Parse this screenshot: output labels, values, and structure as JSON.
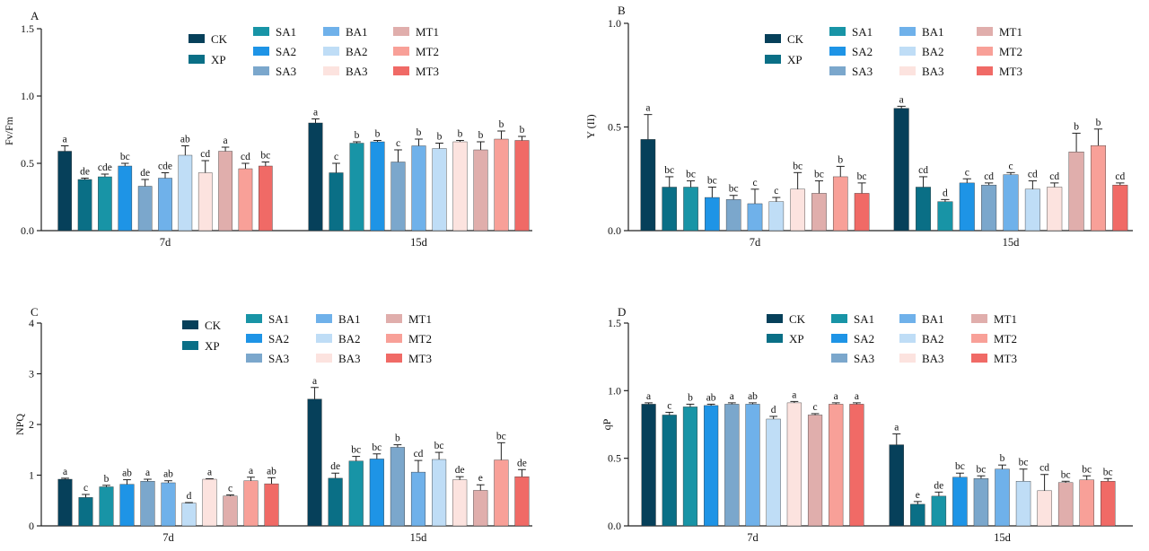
{
  "legend_labels": [
    "CK",
    "XP",
    "SA1",
    "SA2",
    "SA3",
    "BA1",
    "BA2",
    "BA3",
    "MT1",
    "MT2",
    "MT3"
  ],
  "colors": [
    "#06405A",
    "#0A6F86",
    "#1894A6",
    "#1E94E6",
    "#7BA7CC",
    "#6FB1EA",
    "#BFDDF6",
    "#FCE3DF",
    "#E0AEAC",
    "#F8A098",
    "#F06A66"
  ],
  "chart_data": [
    {
      "type": "bar",
      "panel": "A",
      "ylabel": "Fv/Fm",
      "ylim": [
        0,
        1.5
      ],
      "yticks": [
        "0.0",
        "0.5",
        "1.0",
        "1.5"
      ],
      "categories": [
        "7d",
        "15d"
      ],
      "series_names": [
        "CK",
        "XP",
        "SA1",
        "SA2",
        "SA3",
        "BA1",
        "BA2",
        "BA3",
        "MT1",
        "MT2",
        "MT3"
      ],
      "values": [
        [
          0.59,
          0.38,
          0.4,
          0.48,
          0.33,
          0.39,
          0.56,
          0.43,
          0.59,
          0.46,
          0.48
        ],
        [
          0.8,
          0.43,
          0.65,
          0.66,
          0.51,
          0.63,
          0.61,
          0.66,
          0.6,
          0.68,
          0.67
        ]
      ],
      "errors": [
        [
          0.04,
          0.01,
          0.02,
          0.02,
          0.05,
          0.04,
          0.07,
          0.09,
          0.03,
          0.04,
          0.03
        ],
        [
          0.03,
          0.07,
          0.01,
          0.01,
          0.09,
          0.05,
          0.04,
          0.01,
          0.06,
          0.06,
          0.03
        ]
      ],
      "letters": [
        [
          "a",
          "de",
          "cde",
          "bc",
          "de",
          "cde",
          "ab",
          "cd",
          "a",
          "cd",
          "bc"
        ],
        [
          "a",
          "c",
          "b",
          "b",
          "c",
          "b",
          "b",
          "b",
          "b",
          "b",
          "b"
        ]
      ]
    },
    {
      "type": "bar",
      "panel": "B",
      "ylabel": "Y (II)",
      "ylim": [
        0,
        1.0
      ],
      "yticks": [
        "0.0",
        "0.5",
        "1.0"
      ],
      "categories": [
        "7d",
        "15d"
      ],
      "series_names": [
        "CK",
        "XP",
        "SA1",
        "SA2",
        "SA3",
        "BA1",
        "BA2",
        "BA3",
        "MT1",
        "MT2",
        "MT3"
      ],
      "values": [
        [
          0.44,
          0.21,
          0.21,
          0.16,
          0.15,
          0.13,
          0.14,
          0.2,
          0.18,
          0.26,
          0.18
        ],
        [
          0.59,
          0.21,
          0.14,
          0.23,
          0.22,
          0.27,
          0.2,
          0.21,
          0.38,
          0.41,
          0.22
        ]
      ],
      "errors": [
        [
          0.12,
          0.05,
          0.03,
          0.05,
          0.02,
          0.07,
          0.02,
          0.08,
          0.06,
          0.05,
          0.05
        ],
        [
          0.01,
          0.05,
          0.01,
          0.02,
          0.01,
          0.01,
          0.04,
          0.02,
          0.09,
          0.08,
          0.01
        ]
      ],
      "letters": [
        [
          "a",
          "bc",
          "bc",
          "bc",
          "bc",
          "c",
          "c",
          "bc",
          "bc",
          "b",
          "bc"
        ],
        [
          "a",
          "cd",
          "d",
          "c",
          "cd",
          "c",
          "cd",
          "cd",
          "b",
          "b",
          "cd"
        ]
      ]
    },
    {
      "type": "bar",
      "panel": "C",
      "ylabel": "NPQ",
      "ylim": [
        0,
        4
      ],
      "yticks": [
        "0",
        "1",
        "2",
        "3",
        "4"
      ],
      "categories": [
        "7d",
        "15d"
      ],
      "series_names": [
        "CK",
        "XP",
        "SA1",
        "SA2",
        "SA3",
        "BA1",
        "BA2",
        "BA3",
        "MT1",
        "MT2",
        "MT3"
      ],
      "values": [
        [
          0.92,
          0.56,
          0.77,
          0.82,
          0.88,
          0.85,
          0.45,
          0.92,
          0.59,
          0.89,
          0.83
        ],
        [
          2.5,
          0.94,
          1.28,
          1.32,
          1.55,
          1.06,
          1.31,
          0.91,
          0.7,
          1.3,
          0.97
        ]
      ],
      "errors": [
        [
          0.02,
          0.06,
          0.03,
          0.09,
          0.04,
          0.04,
          0.01,
          0.01,
          0.02,
          0.07,
          0.12
        ],
        [
          0.23,
          0.1,
          0.09,
          0.1,
          0.05,
          0.23,
          0.14,
          0.06,
          0.11,
          0.34,
          0.14
        ]
      ],
      "letters": [
        [
          "a",
          "c",
          "b",
          "ab",
          "a",
          "ab",
          "d",
          "a",
          "c",
          "a",
          "ab"
        ],
        [
          "a",
          "de",
          "bc",
          "bc",
          "b",
          "cd",
          "bc",
          "de",
          "e",
          "bc",
          "de"
        ]
      ]
    },
    {
      "type": "bar",
      "panel": "D",
      "ylabel": "qP",
      "ylim": [
        0,
        1.5
      ],
      "yticks": [
        "0.0",
        "0.5",
        "1.0",
        "1.5"
      ],
      "categories": [
        "7d",
        "15d"
      ],
      "series_names": [
        "CK",
        "XP",
        "SA1",
        "SA2",
        "SA3",
        "BA1",
        "BA2",
        "BA3",
        "MT1",
        "MT2",
        "MT3"
      ],
      "values": [
        [
          0.9,
          0.82,
          0.88,
          0.89,
          0.9,
          0.9,
          0.79,
          0.91,
          0.82,
          0.9,
          0.9
        ],
        [
          0.6,
          0.16,
          0.22,
          0.36,
          0.35,
          0.42,
          0.33,
          0.26,
          0.32,
          0.34,
          0.33
        ]
      ],
      "errors": [
        [
          0.01,
          0.02,
          0.02,
          0.01,
          0.01,
          0.01,
          0.02,
          0.01,
          0.01,
          0.01,
          0.01
        ],
        [
          0.08,
          0.02,
          0.03,
          0.03,
          0.02,
          0.03,
          0.09,
          0.12,
          0.01,
          0.03,
          0.02
        ]
      ],
      "letters": [
        [
          "a",
          "c",
          "b",
          "ab",
          "a",
          "ab",
          "d",
          "a",
          "c",
          "a",
          "a"
        ],
        [
          "a",
          "e",
          "de",
          "bc",
          "bc",
          "b",
          "bc",
          "cd",
          "bc",
          "bc",
          "bc"
        ]
      ]
    }
  ]
}
